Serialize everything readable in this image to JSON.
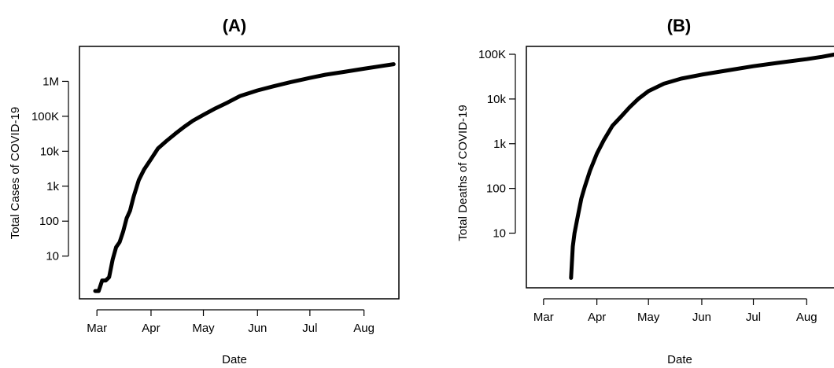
{
  "chart_data": [
    {
      "type": "line",
      "title": "(A)",
      "xlabel": "Date",
      "ylabel": "Total Cases of COVID-19",
      "y_scale": "log",
      "grid": false,
      "legend": "none",
      "xlim": [
        "2020-02-20",
        "2020-08-21"
      ],
      "ylim": [
        0.6,
        10000000
      ],
      "x_ticks": [
        {
          "value": "2020-03-01",
          "label": "Mar"
        },
        {
          "value": "2020-04-01",
          "label": "Apr"
        },
        {
          "value": "2020-05-01",
          "label": "May"
        },
        {
          "value": "2020-06-01",
          "label": "Jun"
        },
        {
          "value": "2020-07-01",
          "label": "Jul"
        },
        {
          "value": "2020-08-01",
          "label": "Aug"
        }
      ],
      "y_ticks": [
        {
          "value": 10,
          "label": "10"
        },
        {
          "value": 100,
          "label": "100"
        },
        {
          "value": 1000,
          "label": "1k"
        },
        {
          "value": 10000,
          "label": "10k"
        },
        {
          "value": 100000,
          "label": "100K"
        },
        {
          "value": 1000000,
          "label": "1M"
        }
      ],
      "x": [
        "2020-02-29",
        "2020-03-02",
        "2020-03-04",
        "2020-03-06",
        "2020-03-08",
        "2020-03-10",
        "2020-03-12",
        "2020-03-14",
        "2020-03-16",
        "2020-03-18",
        "2020-03-20",
        "2020-03-22",
        "2020-03-25",
        "2020-03-28",
        "2020-04-01",
        "2020-04-05",
        "2020-04-10",
        "2020-04-15",
        "2020-04-20",
        "2020-04-25",
        "2020-05-01",
        "2020-05-08",
        "2020-05-15",
        "2020-05-22",
        "2020-06-01",
        "2020-06-10",
        "2020-06-20",
        "2020-07-01",
        "2020-07-10",
        "2020-07-20",
        "2020-08-01",
        "2020-08-10",
        "2020-08-18"
      ],
      "series": [
        {
          "values": [
            1,
            1,
            2,
            2,
            2.5,
            8,
            18,
            25,
            50,
            120,
            200,
            500,
            1500,
            3000,
            6000,
            12000,
            20000,
            32000,
            50000,
            75000,
            110000,
            170000,
            250000,
            380000,
            550000,
            720000,
            950000,
            1250000,
            1550000,
            1850000,
            2300000,
            2700000,
            3100000
          ]
        }
      ]
    },
    {
      "type": "line",
      "title": "(B)",
      "xlabel": "Date",
      "ylabel": "Total Deaths of COVID-19",
      "y_scale": "log",
      "grid": false,
      "legend": "none",
      "xlim": [
        "2020-02-20",
        "2020-08-21"
      ],
      "ylim": [
        0.6,
        150000
      ],
      "x_ticks": [
        {
          "value": "2020-03-01",
          "label": "Mar"
        },
        {
          "value": "2020-04-01",
          "label": "Apr"
        },
        {
          "value": "2020-05-01",
          "label": "May"
        },
        {
          "value": "2020-06-01",
          "label": "Jun"
        },
        {
          "value": "2020-07-01",
          "label": "Jul"
        },
        {
          "value": "2020-08-01",
          "label": "Aug"
        }
      ],
      "y_ticks": [
        {
          "value": 10,
          "label": "10"
        },
        {
          "value": 100,
          "label": "100"
        },
        {
          "value": 1000,
          "label": "1k"
        },
        {
          "value": 10000,
          "label": "10k"
        },
        {
          "value": 100000,
          "label": "100K"
        }
      ],
      "x": [
        "2020-03-17",
        "2020-03-18",
        "2020-03-19",
        "2020-03-21",
        "2020-03-23",
        "2020-03-25",
        "2020-03-28",
        "2020-04-01",
        "2020-04-05",
        "2020-04-10",
        "2020-04-15",
        "2020-04-20",
        "2020-04-25",
        "2020-05-01",
        "2020-05-10",
        "2020-05-20",
        "2020-06-01",
        "2020-06-15",
        "2020-07-01",
        "2020-07-15",
        "2020-08-01",
        "2020-08-10",
        "2020-08-18"
      ],
      "series": [
        {
          "values": [
            1,
            5,
            10,
            25,
            60,
            110,
            250,
            600,
            1200,
            2500,
            4000,
            6500,
            10000,
            15000,
            22000,
            28500,
            35000,
            43000,
            54000,
            64000,
            78000,
            88000,
            100000
          ]
        }
      ]
    }
  ]
}
